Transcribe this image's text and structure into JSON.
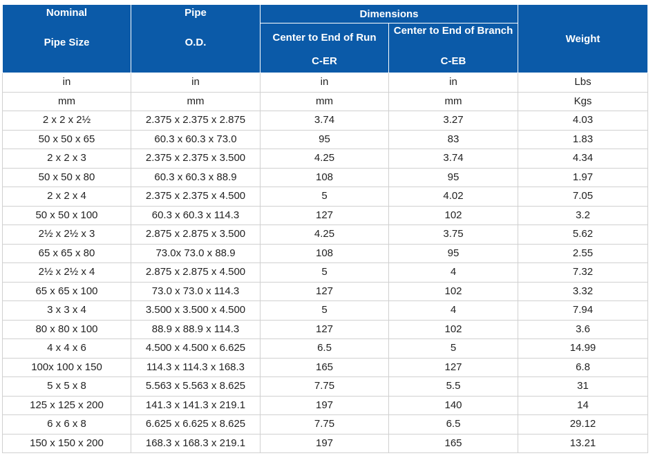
{
  "header": {
    "col1": {
      "line1": "Nominal",
      "line2": "Pipe Size"
    },
    "col2": {
      "line1": "Pipe",
      "line2": "O.D."
    },
    "dimensions": "Dimensions",
    "col3": {
      "line1": "Center to End of Run",
      "line2": "C-ER"
    },
    "col4": {
      "line1": "Center to End of Branch",
      "line2": "C-EB"
    },
    "col5": "Weight"
  },
  "units": [
    [
      "in",
      "in",
      "in",
      "in",
      "Lbs"
    ],
    [
      "mm",
      "mm",
      "mm",
      "mm",
      "Kgs"
    ]
  ],
  "rows": [
    [
      "2 x 2 x 2½",
      "2.375 x 2.375 x 2.875",
      "3.74",
      "3.27",
      "4.03"
    ],
    [
      "50 x 50 x 65",
      "60.3 x 60.3 x 73.0",
      "95",
      "83",
      "1.83"
    ],
    [
      "2 x 2 x 3",
      "2.375 x 2.375 x 3.500",
      "4.25",
      "3.74",
      "4.34"
    ],
    [
      "50 x 50 x 80",
      "60.3 x 60.3 x 88.9",
      "108",
      "95",
      "1.97"
    ],
    [
      "2 x 2 x 4",
      "2.375 x 2.375 x 4.500",
      "5",
      "4.02",
      "7.05"
    ],
    [
      "50 x 50 x 100",
      "60.3 x 60.3 x 114.3",
      "127",
      "102",
      "3.2"
    ],
    [
      "2½ x 2½ x 3",
      "2.875 x 2.875 x 3.500",
      "4.25",
      "3.75",
      "5.62"
    ],
    [
      "65 x 65 x 80",
      "73.0x 73.0 x 88.9",
      "108",
      "95",
      "2.55"
    ],
    [
      "2½ x 2½ x 4",
      "2.875 x 2.875 x 4.500",
      "5",
      "4",
      "7.32"
    ],
    [
      "65 x 65 x 100",
      "73.0 x 73.0 x 114.3",
      "127",
      "102",
      "3.32"
    ],
    [
      "3 x 3 x 4",
      "3.500 x 3.500 x 4.500",
      "5",
      "4",
      "7.94"
    ],
    [
      "80 x 80 x 100",
      "88.9 x 88.9 x 114.3",
      "127",
      "102",
      "3.6"
    ],
    [
      "4 x 4 x 6",
      "4.500 x 4.500 x 6.625",
      "6.5",
      "5",
      "14.99"
    ],
    [
      "100x 100 x 150",
      "114.3 x 114.3 x 168.3",
      "165",
      "127",
      "6.8"
    ],
    [
      "5 x 5 x 8",
      "5.563 x 5.563 x 8.625",
      "7.75",
      "5.5",
      "31"
    ],
    [
      "125 x 125 x 200",
      "141.3 x 141.3 x 219.1",
      "197",
      "140",
      "14"
    ],
    [
      "6 x 6 x 8",
      "6.625 x 6.625 x 8.625",
      "7.75",
      "6.5",
      "29.12"
    ],
    [
      "150 x 150 x 200",
      "168.3 x 168.3 x 219.1",
      "197",
      "165",
      "13.21"
    ]
  ],
  "colors": {
    "header_bg": "#0b5aa8",
    "header_text": "#ffffff",
    "grid": "#d0d0d0"
  }
}
